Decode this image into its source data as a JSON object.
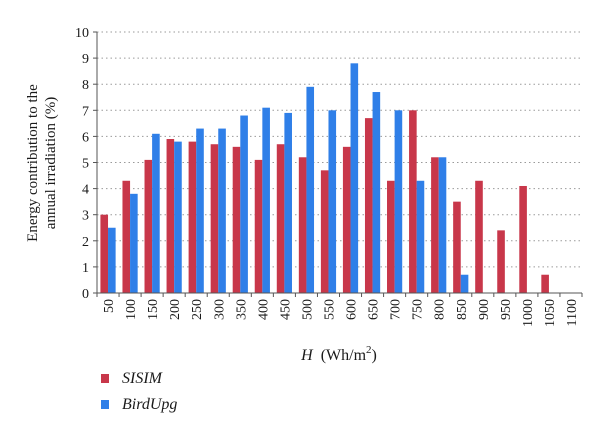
{
  "chart_data": {
    "type": "bar",
    "categories": [
      "50",
      "100",
      "150",
      "200",
      "250",
      "300",
      "350",
      "400",
      "450",
      "500",
      "550",
      "600",
      "650",
      "700",
      "750",
      "800",
      "850",
      "900",
      "950",
      "1000",
      "1050",
      "1100"
    ],
    "series": [
      {
        "name": "SISIM",
        "color": "#c8374a",
        "values": [
          3.0,
          4.3,
          5.1,
          5.9,
          5.8,
          5.7,
          5.6,
          5.1,
          5.7,
          5.2,
          4.7,
          5.6,
          6.7,
          4.3,
          7.0,
          5.2,
          3.5,
          4.3,
          2.4,
          4.1,
          0.7,
          0
        ]
      },
      {
        "name": "BirdUpg",
        "color": "#2f7fe8",
        "values": [
          2.5,
          3.8,
          6.1,
          5.8,
          6.3,
          6.3,
          6.8,
          7.1,
          6.9,
          7.9,
          7.0,
          8.8,
          7.7,
          7.0,
          4.3,
          5.2,
          0.7,
          0,
          0,
          0,
          0,
          0
        ]
      }
    ],
    "ylabel_line1": "Energy contribution to the",
    "ylabel_line2": "annual irradiation (%)",
    "xlabel_symbol": "H",
    "xlabel_unit": "(Wh/m",
    "xlabel_sup": "2",
    "xlabel_close": ")",
    "ylim": [
      0,
      10
    ],
    "yticks": [
      0,
      1,
      2,
      3,
      4,
      5,
      6,
      7,
      8,
      9,
      10
    ],
    "grid": "horizontal-dotted",
    "legend_placement": "bottom-left"
  }
}
